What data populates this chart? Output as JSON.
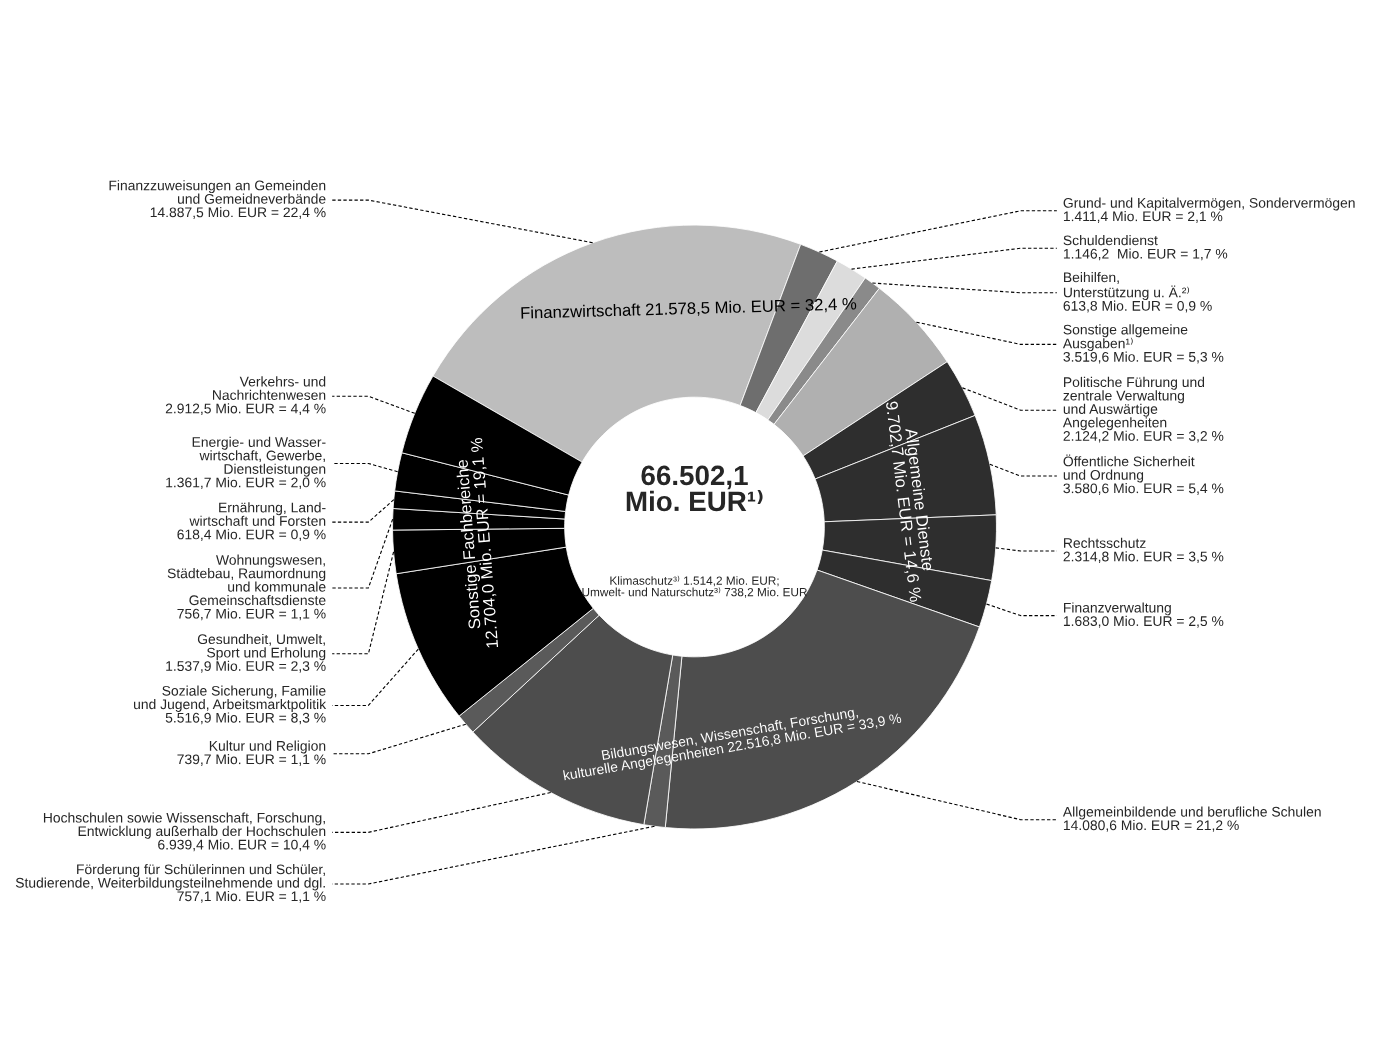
{
  "chart_data": {
    "type": "donut",
    "categories": [
      "Finanzzuweisungen an Gemeinden\nund Gemeidneverbände",
      "Grund- und Kapitalvermögen, Sondervermögen",
      "Schuldendienst",
      "Beihilfen,\nUnterstützung u. Ä.²⁾",
      "Sonstige allgemeine\nAusgaben¹⁾",
      "Politische Führung und\nzentrale Verwaltung\nund Auswärtige\nAngelegenheiten",
      "Öffentliche Sicherheit\nund Ordnung",
      "Rechtsschutz",
      "Finanzverwaltung",
      "Allgemeinbildende und berufliche Schulen",
      "Förderung für Schülerinnen und Schüler,\nStudierende, Weiterbildungsteilnehmende und dgl.",
      "Hochschulen sowie Wissenschaft, Forschung,\nEntwicklung außerhalb der Hochschulen",
      "Kultur und Religion",
      "Soziale Sicherung, Familie\nund Jugend, Arbeitsmarktpolitik",
      "Gesundheit, Umwelt,\nSport und Erholung",
      "Wohnungswesen,\nStädtebau, Raumordnung\nund kommunale\nGemeinschaftsdienste",
      "Ernährung, Land-\nwirtschaft und Forsten",
      "Energie- und Wasser-\nwirtschaft, Gewerbe,\nDienstleistungen",
      "Verkehrs- und\nNachrichtenwesen"
    ],
    "values": [
      14887.5,
      1411.4,
      1146.2,
      613.8,
      3519.6,
      2124.2,
      3580.6,
      2314.8,
      1683.0,
      14080.6,
      757.1,
      6939.4,
      739.7,
      5516.9,
      1537.9,
      756.7,
      618.4,
      1361.7,
      2912.5
    ],
    "value_labels": [
      "14.887,5 Mio. EUR = 22,4 %",
      "1.411,4 Mio. EUR = 2,1 %",
      "1.146,2  Mio. EUR = 1,7 %",
      "613,8 Mio. EUR = 0,9 %",
      "3.519,6 Mio. EUR = 5,3 %",
      "2.124,2 Mio. EUR = 3,2 %",
      "3.580,6 Mio. EUR = 5,4 %",
      "2.314,8 Mio. EUR = 3,5 %",
      "1.683,0 Mio. EUR = 2,5 %",
      "14.080,6 Mio. EUR = 21,2 %",
      "757,1 Mio. EUR = 1,1 %",
      "6.939,4 Mio. EUR = 10,4 %",
      "739,7 Mio. EUR = 1,1 %",
      "5.516,9 Mio. EUR = 8,3 %",
      "1.537,9 Mio. EUR = 2,3 %",
      "756,7 Mio. EUR = 1,1 %",
      "618,4 Mio. EUR = 0,9 %",
      "1.361,7 Mio. EUR = 2,0 %",
      "2.912,5 Mio. EUR = 4,4 %"
    ],
    "colors": [
      "#bdbdbd",
      "#6e6e6e",
      "#dcdcdc",
      "#8a8a8a",
      "#b0b0b0",
      "#2e2e2e",
      "#2e2e2e",
      "#2e2e2e",
      "#2e2e2e",
      "#4d4d4d",
      "#5a5a5a",
      "#4d4d4d",
      "#5a5a5a",
      "#000000",
      "#000000",
      "#000000",
      "#000000",
      "#000000",
      "#000000"
    ],
    "annotations": [
      "66.502,1\nMio. EUR¹⁾",
      "Finanzwirtschaft 21.578,5 Mio. EUR = 32,4 %",
      "Allgemeine Dienste\n9.702,7 Mio. EUR = 14,6 %",
      "Bildungswesen, Wissenschaft, Forschung,\nkulturelle Angelegenheiten 22.516,8 Mio. EUR = 33,9 %",
      "Sonstige Fachbereiche\n12.704,0 Mio. EUR = 19,1 %",
      "Klimaschutz³⁾ 1.514,2 Mio. EUR;\nUmwelt- und Naturschutz³⁾ 738,2 Mio. EUR"
    ],
    "legend": false
  }
}
